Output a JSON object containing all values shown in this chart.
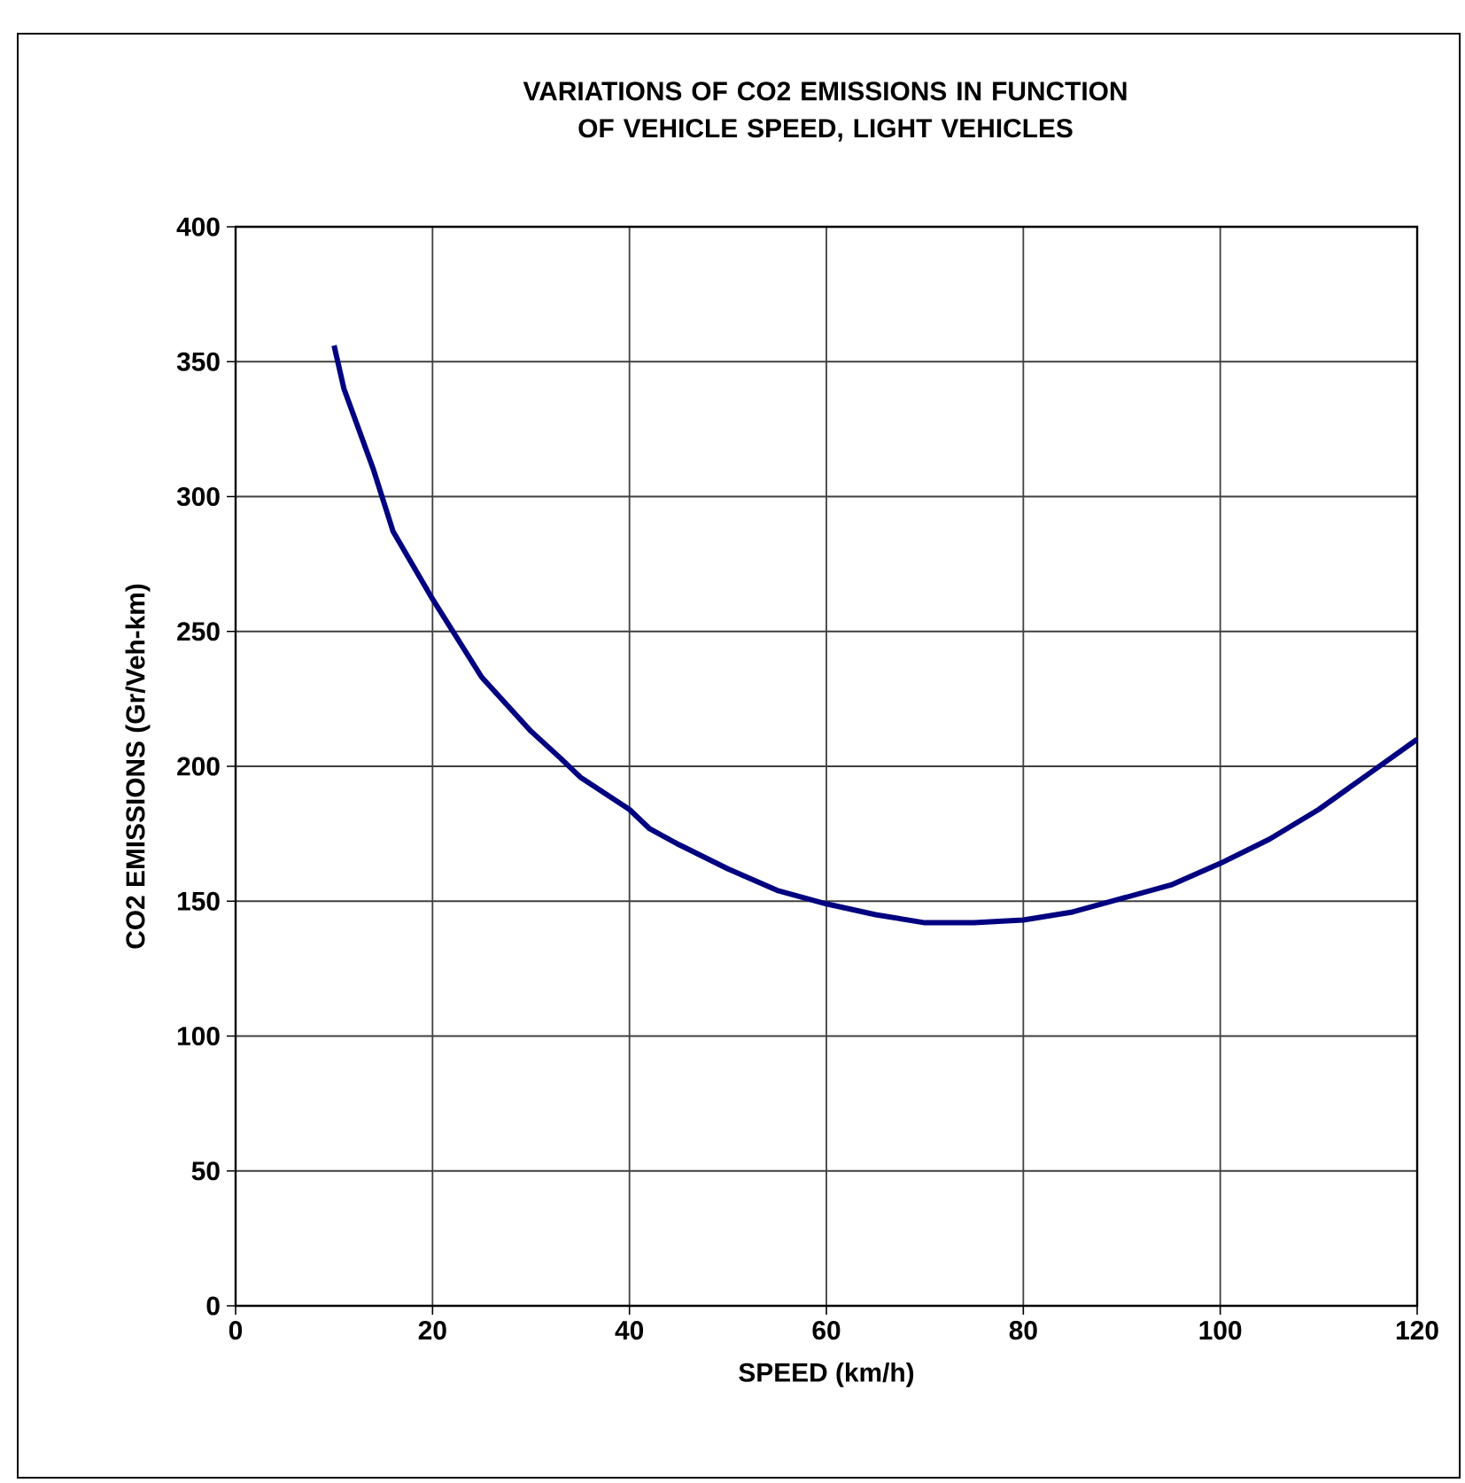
{
  "chart_data": {
    "type": "line",
    "title": "VARIATIONS OF CO2 EMISSIONS IN FUNCTION\nOF VEHICLE SPEED, LIGHT VEHICLES",
    "xlabel": "SPEED (km/h)",
    "ylabel": "CO2 EMISSIONS (Gr/Veh-km)",
    "x": [
      10,
      11,
      14,
      16,
      20,
      25,
      30,
      33,
      35,
      40,
      42,
      45,
      50,
      55,
      60,
      65,
      70,
      75,
      80,
      85,
      90,
      95,
      100,
      105,
      110,
      115,
      120
    ],
    "series": [
      {
        "color": "#000080",
        "values": [
          356,
          340,
          310,
          287,
          262,
          233,
          213,
          203,
          196,
          184,
          177,
          171,
          162,
          154,
          149,
          145,
          142,
          142,
          143,
          146,
          151,
          156,
          164,
          173,
          184,
          197,
          210
        ]
      }
    ],
    "xlim": [
      0,
      120
    ],
    "ylim": [
      0,
      400
    ],
    "xticks": [
      0,
      20,
      40,
      60,
      80,
      100,
      120
    ],
    "yticks": [
      0,
      50,
      100,
      150,
      200,
      250,
      300,
      350,
      400
    ],
    "grid": true,
    "marker": "none",
    "line_style": "solid"
  }
}
